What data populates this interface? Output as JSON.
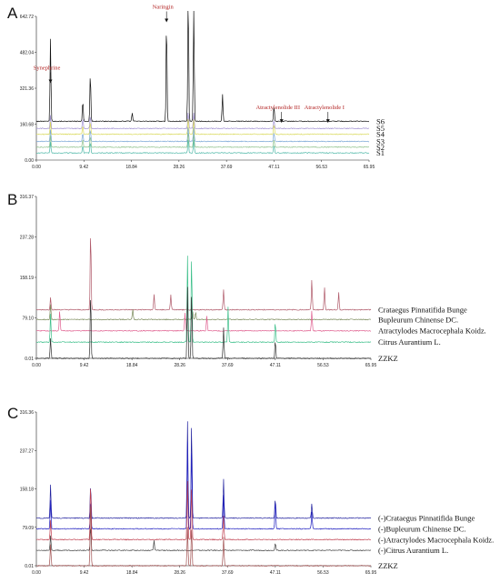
{
  "chart_data": [
    {
      "panel": "A",
      "type": "line",
      "xlim": [
        0.0,
        65.95
      ],
      "x_ticks": [
        "0.00",
        "9.42",
        "18.84",
        "28.26",
        "37.69",
        "47.11",
        "56.53",
        "65.95"
      ],
      "ylim": [
        0.0,
        642.72
      ],
      "y_ticks": [
        "0.00",
        "160.68",
        "321.36",
        "482.04",
        "642.72"
      ],
      "annotations": [
        {
          "text": "Synephrine",
          "x": 2.8,
          "y": 372,
          "color": "#b22222"
        },
        {
          "text": "Naringin",
          "x": 25.8,
          "y": 645,
          "color": "#b22222"
        },
        {
          "text": "Atractylenolide III",
          "x": 48.6,
          "y": 195,
          "color": "#b22222"
        },
        {
          "text": "Atractylenolide I",
          "x": 57.8,
          "y": 195,
          "color": "#b22222"
        }
      ],
      "series": [
        {
          "name": "S6",
          "color": "#111111",
          "peaks": [
            [
              2.8,
              372
            ],
            [
              9.2,
              95
            ],
            [
              10.7,
              220
            ],
            [
              19.0,
              40
            ],
            [
              25.8,
              460
            ],
            [
              30.1,
              610
            ],
            [
              31.2,
              560
            ],
            [
              36.9,
              120
            ],
            [
              47.1,
              70
            ]
          ]
        },
        {
          "name": "S5",
          "color": "#9f8fd1",
          "peaks": [
            [
              2.8,
              60
            ],
            [
              9.2,
              45
            ],
            [
              10.7,
              60
            ],
            [
              30.1,
              80
            ],
            [
              31.2,
              70
            ],
            [
              47.1,
              40
            ]
          ]
        },
        {
          "name": "S4",
          "color": "#d9d95a",
          "peaks": [
            [
              2.8,
              55
            ],
            [
              9.2,
              40
            ],
            [
              10.7,
              55
            ],
            [
              30.1,
              75
            ],
            [
              31.2,
              65
            ],
            [
              47.1,
              45
            ]
          ]
        },
        {
          "name": "S3",
          "color": "#7aa7d6",
          "peaks": [
            [
              2.8,
              55
            ],
            [
              9.2,
              38
            ],
            [
              10.7,
              55
            ],
            [
              30.1,
              70
            ],
            [
              31.2,
              60
            ],
            [
              47.1,
              40
            ]
          ]
        },
        {
          "name": "S2",
          "color": "#8cc08a",
          "peaks": [
            [
              2.8,
              55
            ],
            [
              9.2,
              36
            ],
            [
              10.7,
              52
            ],
            [
              30.1,
              70
            ],
            [
              31.2,
              60
            ],
            [
              47.1,
              38
            ]
          ]
        },
        {
          "name": "S1",
          "color": "#4fb8a8",
          "peaks": [
            [
              2.8,
              50
            ],
            [
              9.2,
              35
            ],
            [
              10.7,
              50
            ],
            [
              30.1,
              65
            ],
            [
              31.2,
              58
            ],
            [
              47.1,
              35
            ]
          ]
        }
      ]
    },
    {
      "panel": "B",
      "type": "line",
      "xlim": [
        0.0,
        65.95
      ],
      "x_ticks": [
        "0.00",
        "9.42",
        "18.84",
        "28.26",
        "37.69",
        "47.11",
        "56.53",
        "65.95"
      ],
      "ylim": [
        0.01,
        316.37
      ],
      "y_ticks": [
        "0.01",
        "79.10",
        "158.19",
        "237.28",
        "316.37"
      ],
      "series": [
        {
          "name": "Crataegus Pinnatifida Bunge",
          "color": "#b05a6a",
          "peaks": [
            [
              10.7,
              160
            ],
            [
              2.8,
              25
            ],
            [
              23.2,
              30
            ],
            [
              26.5,
              30
            ],
            [
              36.9,
              40
            ],
            [
              54.3,
              60
            ],
            [
              56.8,
              45
            ],
            [
              59.6,
              35
            ]
          ]
        },
        {
          "name": "Bupleurum Chinense DC.",
          "color": "#7a8a5a",
          "peaks": [
            [
              2.8,
              30
            ],
            [
              19.0,
              20
            ],
            [
              30.8,
              15
            ],
            [
              31.4,
              15
            ]
          ]
        },
        {
          "name": "Atractylodes Macrocephala Koidz.",
          "color": "#e06090",
          "peaks": [
            [
              4.6,
              40
            ],
            [
              29.3,
              35
            ],
            [
              33.6,
              30
            ],
            [
              54.3,
              40
            ]
          ]
        },
        {
          "name": "Citrus Aurantium L.",
          "color": "#3cbf8a",
          "peaks": [
            [
              2.8,
              55
            ],
            [
              29.8,
              170
            ],
            [
              30.6,
              170
            ],
            [
              37.8,
              70
            ],
            [
              47.1,
              40
            ]
          ]
        },
        {
          "name": "ZZKZ",
          "color": "#333333",
          "peaks": [
            [
              2.8,
              40
            ],
            [
              10.7,
              130
            ],
            [
              29.8,
              140
            ],
            [
              30.6,
              130
            ],
            [
              36.9,
              60
            ],
            [
              47.1,
              35
            ]
          ]
        }
      ]
    },
    {
      "panel": "C",
      "type": "line",
      "xlim": [
        0.0,
        65.95
      ],
      "x_ticks": [
        "0.00",
        "9.42",
        "18.84",
        "28.26",
        "37.69",
        "47.11",
        "56.53",
        "65.95"
      ],
      "ylim": [
        0.01,
        316.36
      ],
      "y_ticks": [
        "0.01",
        "79.09",
        "158.18",
        "237.27",
        "316.36"
      ],
      "series": [
        {
          "name": "(-)Crataegus Pinnatifida Bunge",
          "color": "#22229f",
          "peaks": [
            [
              2.8,
              70
            ],
            [
              10.7,
              70
            ],
            [
              29.8,
              200
            ],
            [
              30.6,
              200
            ],
            [
              36.9,
              80
            ],
            [
              47.1,
              40
            ],
            [
              54.3,
              30
            ]
          ]
        },
        {
          "name": "(-)Bupleurum Chinense DC.",
          "color": "#2020c0",
          "peaks": [
            [
              2.8,
              60
            ],
            [
              10.7,
              60
            ],
            [
              29.8,
              180
            ],
            [
              30.6,
              170
            ],
            [
              36.9,
              70
            ],
            [
              47.1,
              60
            ],
            [
              54.3,
              35
            ]
          ]
        },
        {
          "name": "(-)Atractylodes Macrocephala Koidz.",
          "color": "#c04050",
          "peaks": [
            [
              2.8,
              40
            ],
            [
              10.7,
              120
            ],
            [
              29.8,
              120
            ],
            [
              30.6,
              110
            ],
            [
              36.9,
              50
            ]
          ]
        },
        {
          "name": "(-)Citrus Aurantium L.",
          "color": "#444444",
          "peaks": [
            [
              2.8,
              30
            ],
            [
              10.7,
              50
            ],
            [
              23.2,
              20
            ],
            [
              47.1,
              15
            ]
          ]
        },
        {
          "name": "ZZKZ",
          "color": "#a05050",
          "peaks": [
            [
              2.8,
              45
            ],
            [
              10.7,
              140
            ],
            [
              29.8,
              80
            ],
            [
              30.6,
              80
            ],
            [
              36.9,
              60
            ]
          ]
        }
      ]
    }
  ]
}
